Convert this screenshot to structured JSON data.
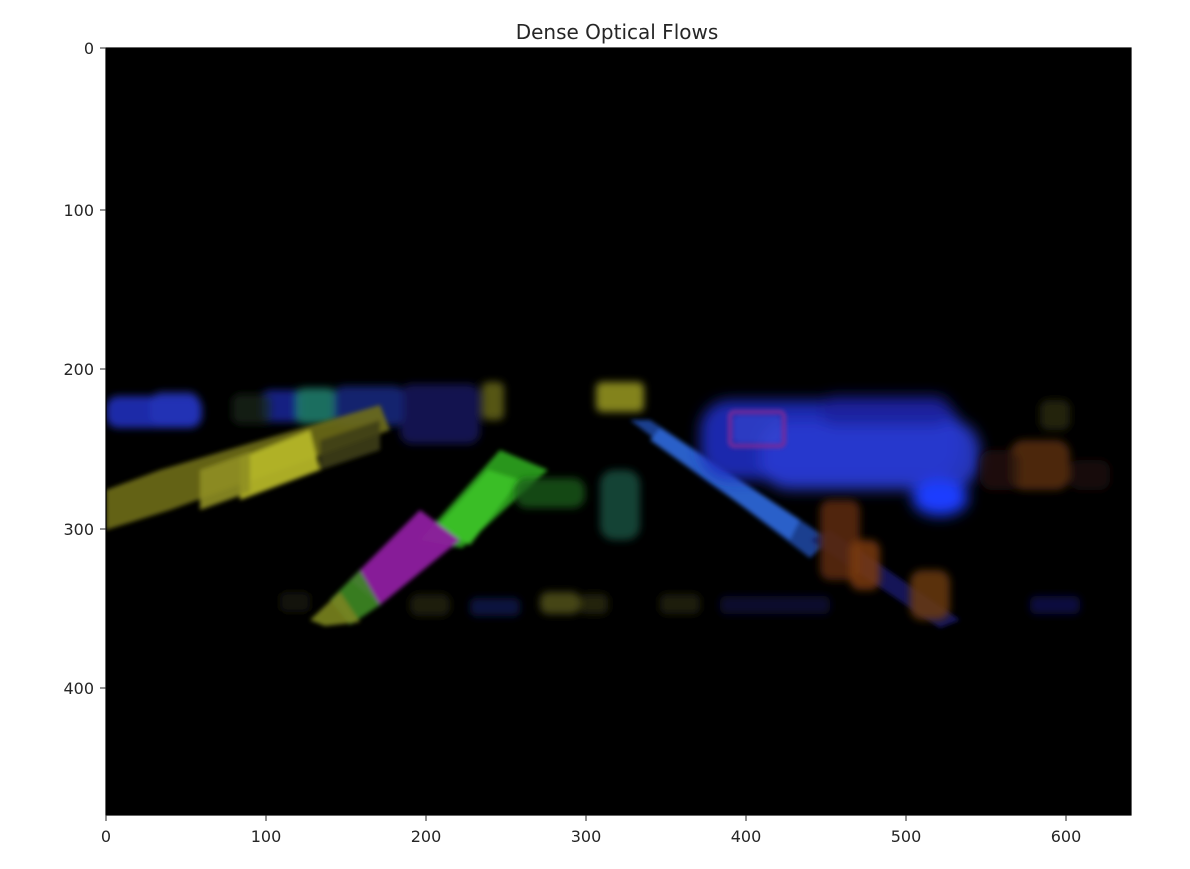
{
  "figure": {
    "title": "Dense Optical Flows",
    "background_color": "#000000",
    "x_axis": {
      "range": [
        0,
        640
      ],
      "ticks": [
        "0",
        "100",
        "200",
        "300",
        "400",
        "500",
        "600"
      ]
    },
    "y_axis": {
      "range": [
        0,
        480
      ],
      "inverted": true,
      "ticks": [
        "0",
        "100",
        "200",
        "300",
        "400"
      ]
    },
    "grid": false
  }
}
